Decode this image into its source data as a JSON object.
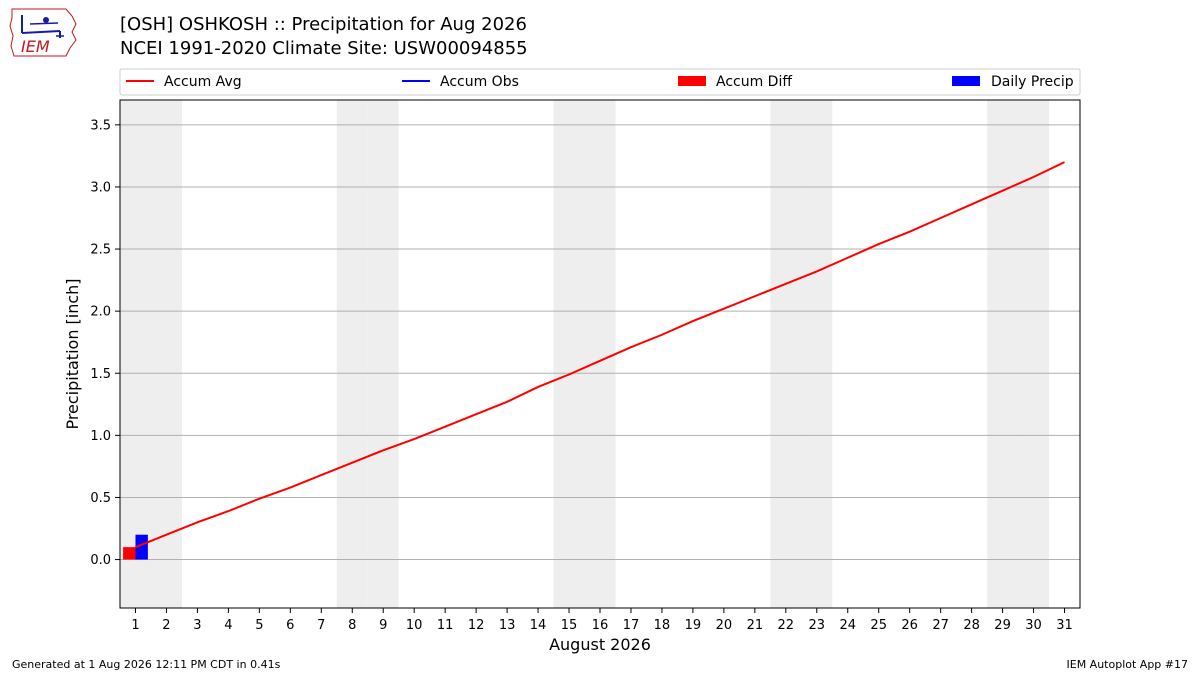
{
  "titles": [
    "[OSH] OSHKOSH :: Precipitation for Aug 2026",
    "NCEI 1991-2020 Climate Site: USW00094855"
  ],
  "logo": {
    "text": "IEM",
    "color": "#c4161c",
    "icon_color": "#1a1aa8"
  },
  "footer": {
    "left": "Generated at 1 Aug 2026 12:11 PM CDT in 0.41s",
    "right": "IEM Autoplot App #17"
  },
  "colors": {
    "accum_avg": "#ff0000",
    "accum_obs": "#0000ff",
    "accum_diff": "#ff0000",
    "daily_precip": "#0000ff",
    "weekend_shade": "#eeeeee",
    "grid": "#b0b0b0"
  },
  "chart_data": {
    "type": "line",
    "xlabel": "August 2026",
    "ylabel": "Precipitation [inch]",
    "xlim": [
      0.5,
      31.5
    ],
    "ylim": [
      -0.39,
      3.7
    ],
    "x_ticks": [
      1,
      2,
      3,
      4,
      5,
      6,
      7,
      8,
      9,
      10,
      11,
      12,
      13,
      14,
      15,
      16,
      17,
      18,
      19,
      20,
      21,
      22,
      23,
      24,
      25,
      26,
      27,
      28,
      29,
      30,
      31
    ],
    "y_ticks": [
      0.0,
      0.5,
      1.0,
      1.5,
      2.0,
      2.5,
      3.0,
      3.5
    ],
    "y_tick_labels": [
      "0.0",
      "0.5",
      "1.0",
      "1.5",
      "2.0",
      "2.5",
      "3.0",
      "3.5"
    ],
    "grid": "horizontal",
    "legend": {
      "placement": "top, above plot",
      "entries": [
        {
          "label": "Accum Avg",
          "kind": "line",
          "color": "#ff0000"
        },
        {
          "label": "Accum Obs",
          "kind": "line",
          "color": "#0000ff"
        },
        {
          "label": "Accum Diff",
          "kind": "bar",
          "color": "#ff0000"
        },
        {
          "label": "Daily Precip",
          "kind": "bar",
          "color": "#0000ff"
        }
      ]
    },
    "weekend_days": [
      1,
      2,
      8,
      9,
      15,
      16,
      22,
      23,
      29,
      30
    ],
    "series": [
      {
        "name": "Accum Avg",
        "type": "line",
        "x": [
          1,
          2,
          3,
          4,
          5,
          6,
          7,
          8,
          9,
          10,
          11,
          12,
          13,
          14,
          15,
          16,
          17,
          18,
          19,
          20,
          21,
          22,
          23,
          24,
          25,
          26,
          27,
          28,
          29,
          30,
          31
        ],
        "values": [
          0.1,
          0.2,
          0.3,
          0.39,
          0.49,
          0.58,
          0.68,
          0.78,
          0.88,
          0.97,
          1.07,
          1.17,
          1.27,
          1.39,
          1.49,
          1.6,
          1.71,
          1.81,
          1.92,
          2.02,
          2.12,
          2.22,
          2.32,
          2.43,
          2.54,
          2.64,
          2.75,
          2.86,
          2.97,
          3.08,
          3.2
        ]
      },
      {
        "name": "Accum Obs",
        "type": "line",
        "x": [
          1
        ],
        "values": [
          0.2
        ]
      },
      {
        "name": "Accum Diff",
        "type": "bar",
        "x": [
          1
        ],
        "values": [
          0.1
        ]
      },
      {
        "name": "Daily Precip",
        "type": "bar",
        "x": [
          1
        ],
        "values": [
          0.2
        ]
      }
    ]
  }
}
